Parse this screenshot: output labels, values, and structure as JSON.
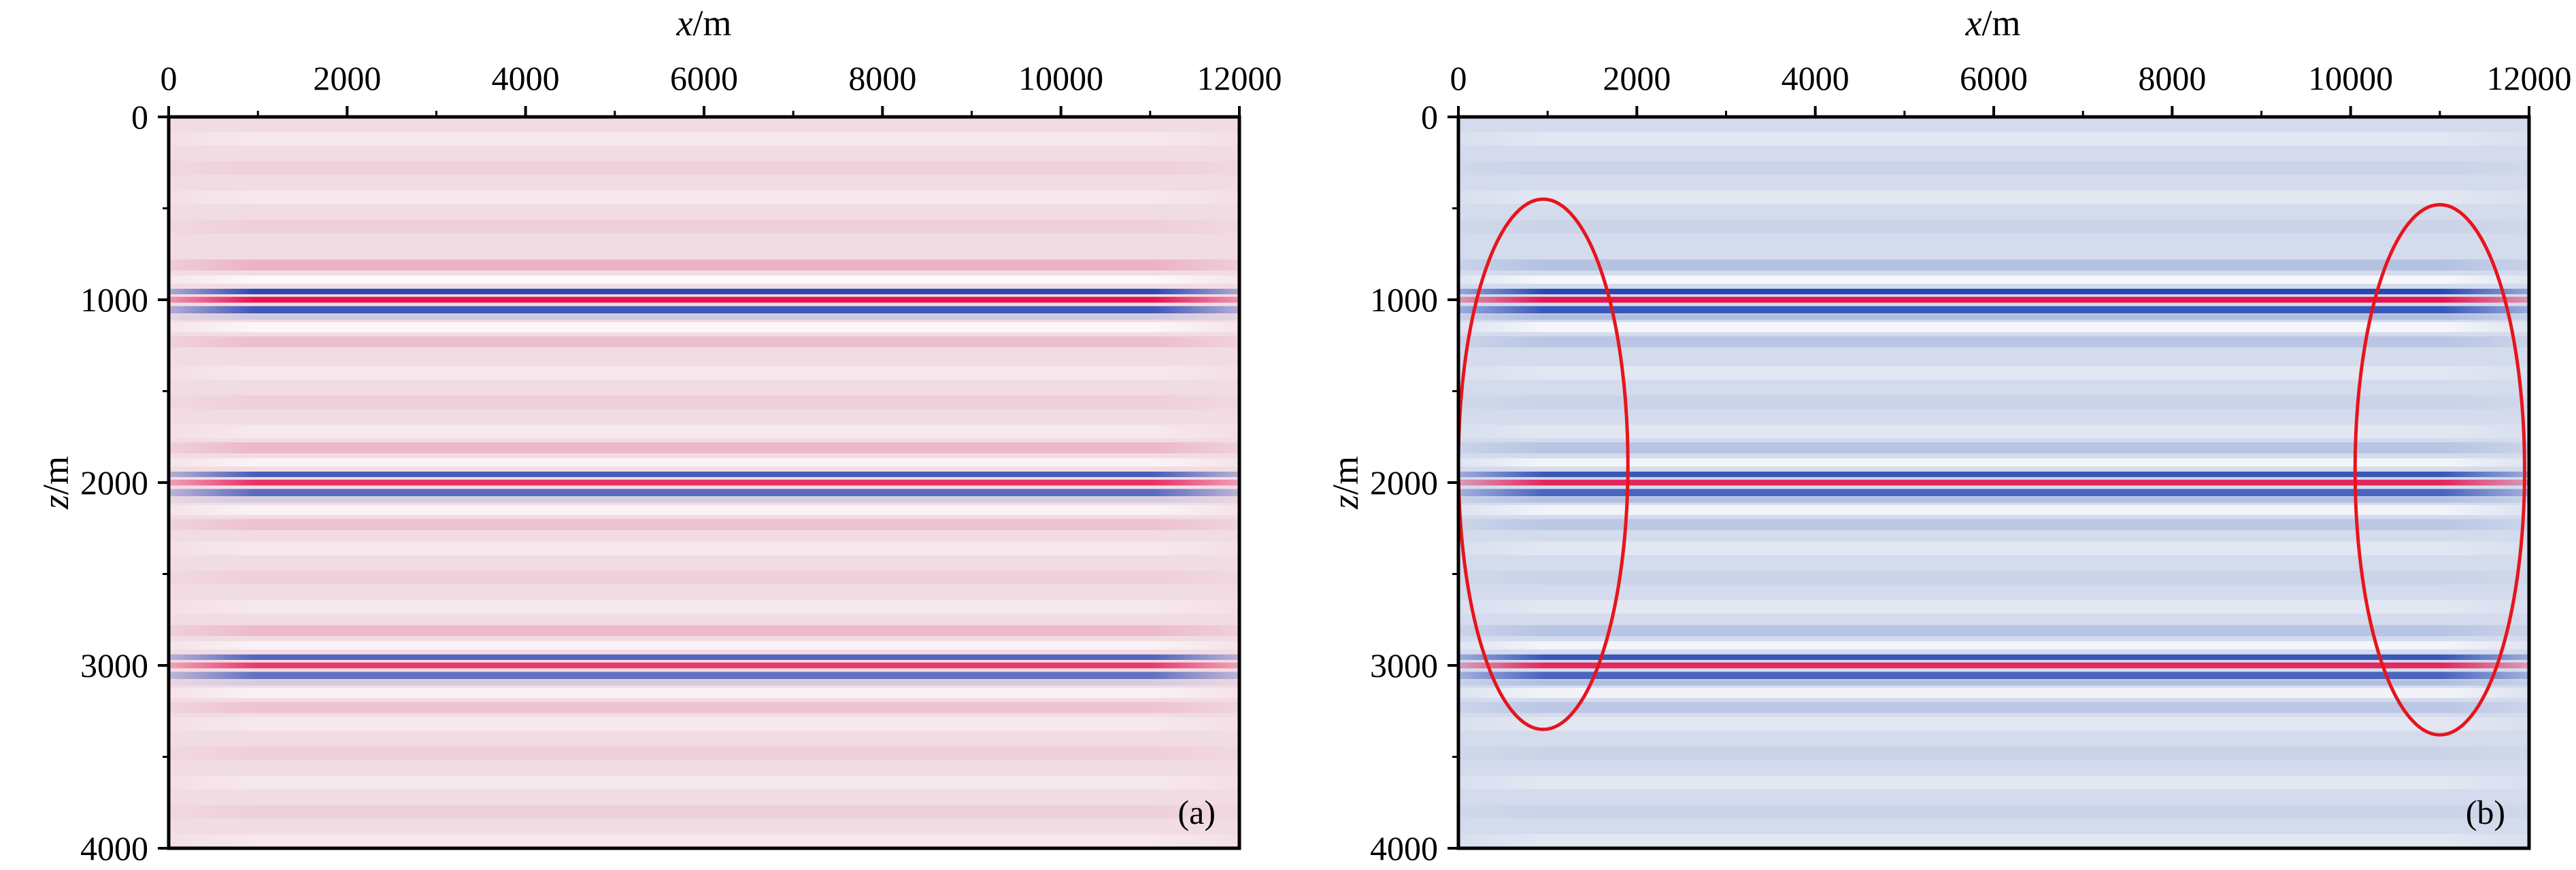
{
  "chart_data": [
    {
      "type": "heatmap",
      "panel_label": "(a)",
      "xlabel_var": "x",
      "xlabel_unit": "/m",
      "ylabel_var": "z",
      "ylabel_unit": "/m",
      "x_ticks": [
        0,
        2000,
        4000,
        6000,
        8000,
        10000,
        12000
      ],
      "y_ticks": [
        0,
        1000,
        2000,
        3000,
        4000
      ],
      "xlim": [
        0,
        12000
      ],
      "ylim": [
        0,
        4000
      ],
      "x_axis_position": "top",
      "background_color": "#f2dce3",
      "positive_color": "#e6134f",
      "negative_color": "#1f3fb0",
      "reflectors": [
        {
          "depth": 1000,
          "strength": 1.0
        },
        {
          "depth": 2000,
          "strength": 0.85
        },
        {
          "depth": 3000,
          "strength": 0.8
        }
      ],
      "annotations": []
    },
    {
      "type": "heatmap",
      "panel_label": "(b)",
      "xlabel_var": "x",
      "xlabel_unit": "/m",
      "ylabel_var": "z",
      "ylabel_unit": "/m",
      "x_ticks": [
        0,
        2000,
        4000,
        6000,
        8000,
        10000,
        12000
      ],
      "y_ticks": [
        0,
        1000,
        2000,
        3000,
        4000
      ],
      "xlim": [
        0,
        12000
      ],
      "ylim": [
        0,
        4000
      ],
      "x_axis_position": "top",
      "background_color": "#d3dbec",
      "positive_color": "#e6134f",
      "negative_color": "#1f3fb0",
      "reflectors": [
        {
          "depth": 1000,
          "strength": 1.0
        },
        {
          "depth": 2000,
          "strength": 0.9
        },
        {
          "depth": 3000,
          "strength": 0.9
        }
      ],
      "annotations": [
        {
          "shape": "ellipse",
          "color": "#e8141c",
          "cx": 950,
          "cz": 1900,
          "rx": 950,
          "rz": 1450
        },
        {
          "shape": "ellipse",
          "color": "#e8141c",
          "cx": 11000,
          "cz": 1930,
          "rx": 950,
          "rz": 1450
        }
      ]
    }
  ]
}
